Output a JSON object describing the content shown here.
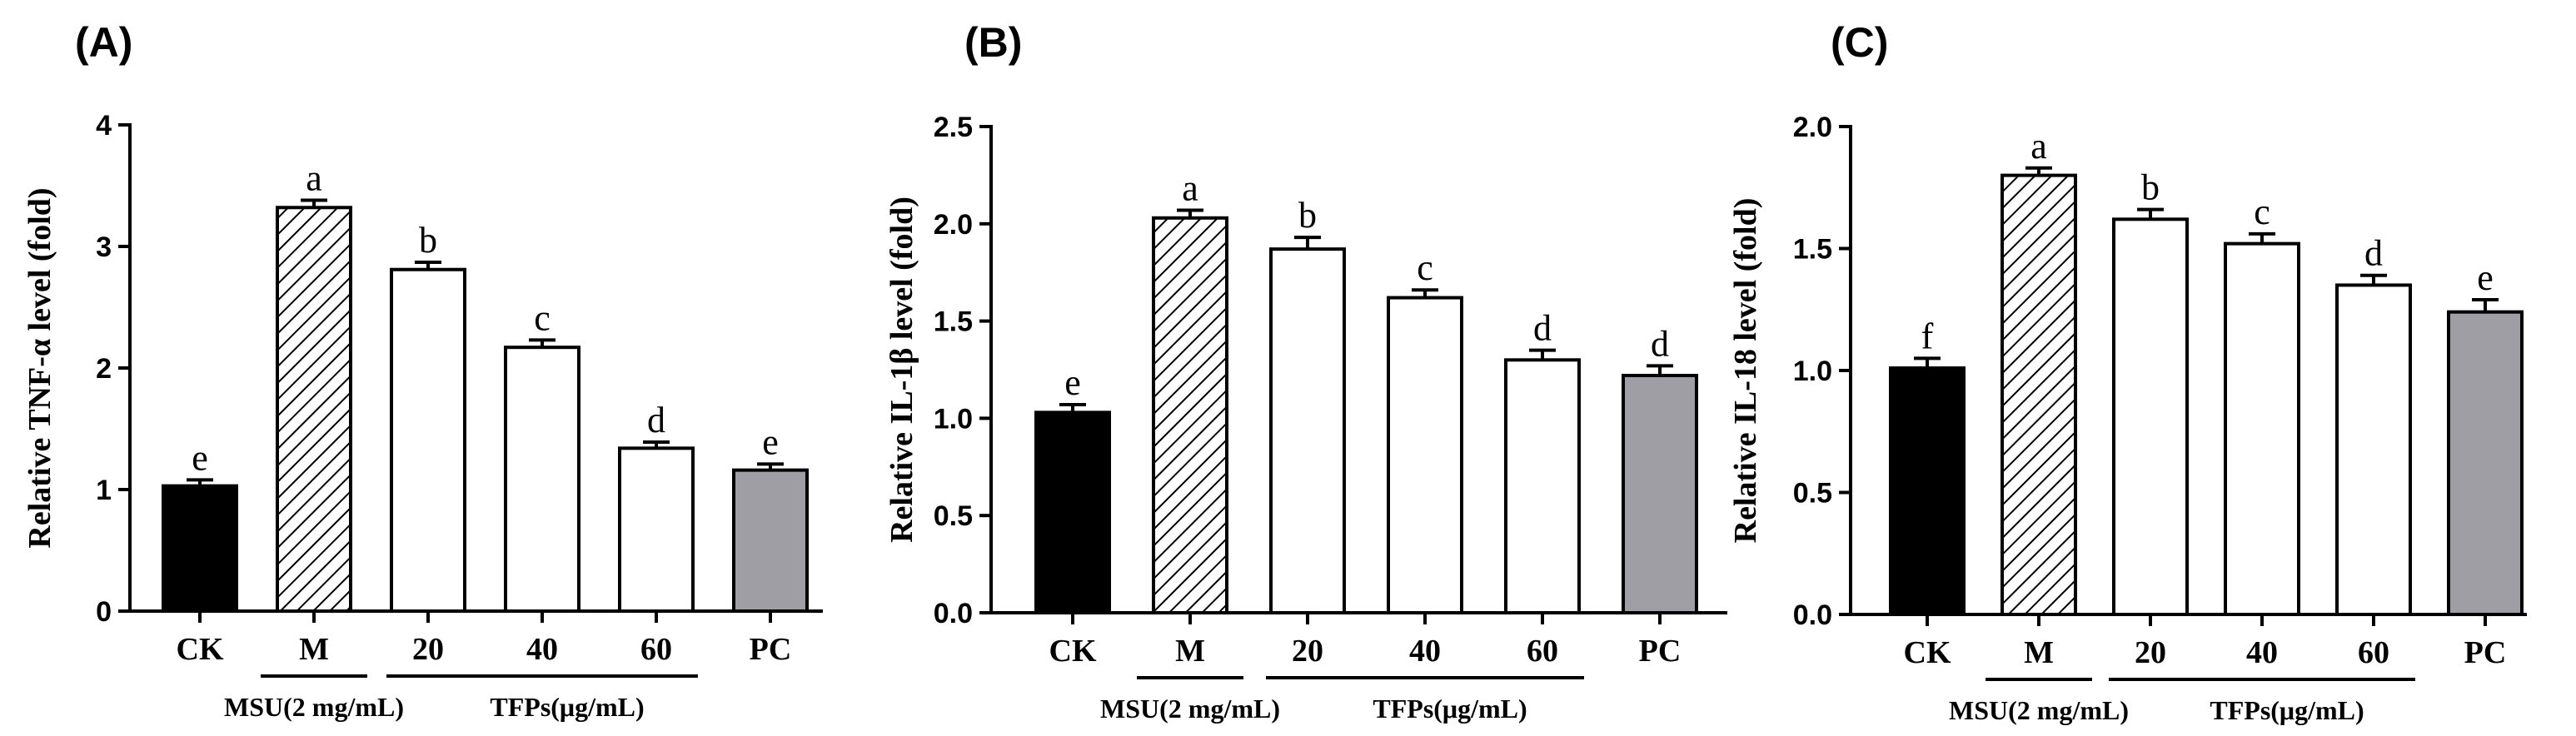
{
  "colors": {
    "CK": "#000000",
    "M": "hatched",
    "TFP": "#ffffff",
    "PC": "#9e9ea4"
  },
  "chart_data": [
    {
      "panel": "(A)",
      "type": "bar",
      "ylabel": "Relative TNF-α level (fold)",
      "ylim": [
        0,
        4
      ],
      "yticks": [
        "0",
        "1",
        "2",
        "3",
        "4"
      ],
      "categories": [
        "CK",
        "M",
        "20",
        "40",
        "60",
        "PC"
      ],
      "values": [
        1.03,
        3.32,
        2.81,
        2.17,
        1.34,
        1.16
      ],
      "errors": [
        0.05,
        0.06,
        0.06,
        0.06,
        0.05,
        0.05
      ],
      "letters": [
        "e",
        "a",
        "b",
        "c",
        "d",
        "e"
      ],
      "groups": [
        {
          "label": "MSU(2 mg/mL)"
        },
        {
          "label": "TFPs(μg/mL)"
        }
      ]
    },
    {
      "panel": "(B)",
      "type": "bar",
      "ylabel": "Relative IL-1β level (fold)",
      "ylim": [
        0,
        2.5
      ],
      "yticks": [
        "0.0",
        "0.5",
        "1.0",
        "1.5",
        "2.0",
        "2.5"
      ],
      "categories": [
        "CK",
        "M",
        "20",
        "40",
        "60",
        "PC"
      ],
      "values": [
        1.03,
        2.03,
        1.87,
        1.62,
        1.3,
        1.22
      ],
      "errors": [
        0.04,
        0.04,
        0.06,
        0.04,
        0.05,
        0.05
      ],
      "letters": [
        "e",
        "a",
        "b",
        "c",
        "d",
        "d"
      ],
      "groups": [
        {
          "label": "MSU(2 mg/mL)"
        },
        {
          "label": "TFPs(μg/mL)"
        }
      ]
    },
    {
      "panel": "(C)",
      "type": "bar",
      "ylabel": "Relative IL-18 level (fold)",
      "ylim": [
        0,
        2.0
      ],
      "yticks": [
        "0.0",
        "0.5",
        "1.0",
        "1.5",
        "2.0"
      ],
      "categories": [
        "CK",
        "M",
        "20",
        "40",
        "60",
        "PC"
      ],
      "values": [
        1.01,
        1.8,
        1.62,
        1.52,
        1.35,
        1.24
      ],
      "errors": [
        0.04,
        0.03,
        0.04,
        0.04,
        0.04,
        0.05
      ],
      "letters": [
        "f",
        "a",
        "b",
        "c",
        "d",
        "e"
      ],
      "groups": [
        {
          "label": "MSU(2 mg/mL)"
        },
        {
          "label": "TFPs(μg/mL)"
        }
      ]
    }
  ]
}
